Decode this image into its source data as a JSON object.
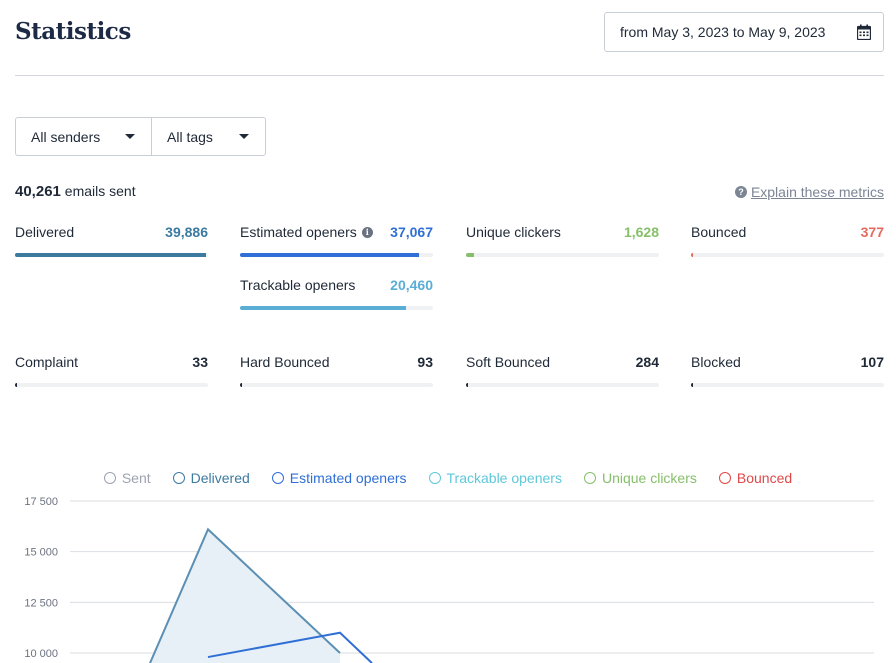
{
  "page": {
    "title": "Statistics",
    "date_range": "from May 3, 2023 to May 9, 2023"
  },
  "filters": {
    "senders": "All senders",
    "tags": "All tags"
  },
  "summary": {
    "count": "40,261",
    "label": "emails sent",
    "explain": "Explain these metrics"
  },
  "metrics": {
    "delivered": {
      "label": "Delivered",
      "value": "39,886",
      "fraction": 0.99,
      "color": "#3d7aa0"
    },
    "estimated_openers": {
      "label": "Estimated openers",
      "value": "37,067",
      "fraction": 0.93,
      "color": "#2f6fd6"
    },
    "unique_clickers": {
      "label": "Unique clickers",
      "value": "1,628",
      "fraction": 0.04,
      "color": "#86c06a"
    },
    "bounced": {
      "label": "Bounced",
      "value": "377",
      "fraction": 0.01,
      "color": "#e46a5e"
    },
    "trackable_openers": {
      "label": "Trackable openers",
      "value": "20,460",
      "fraction": 0.86,
      "color": "#5aaed6"
    },
    "complaint": {
      "label": "Complaint",
      "value": "33",
      "fraction": 0.005,
      "color": "#1f2937"
    },
    "hard_bounced": {
      "label": "Hard Bounced",
      "value": "93",
      "fraction": 0.005,
      "color": "#1f2937"
    },
    "soft_bounced": {
      "label": "Soft Bounced",
      "value": "284",
      "fraction": 0.005,
      "color": "#1f2937"
    },
    "blocked": {
      "label": "Blocked",
      "value": "107",
      "fraction": 0.005,
      "color": "#1f2937"
    }
  },
  "legend": [
    {
      "key": "sent",
      "label": "Sent",
      "color": "#9ca3af"
    },
    {
      "key": "delivered",
      "label": "Delivered",
      "color": "#3d7aa0"
    },
    {
      "key": "estimated_openers",
      "label": "Estimated openers",
      "color": "#2f6fd6"
    },
    {
      "key": "trackable_openers",
      "label": "Trackable openers",
      "color": "#5ec8d8"
    },
    {
      "key": "unique_clickers",
      "label": "Unique clickers",
      "color": "#86c06a"
    },
    {
      "key": "bounced",
      "label": "Bounced",
      "color": "#e04848"
    }
  ],
  "chart_data": {
    "type": "area",
    "y_ticks": [
      "17 500",
      "15 000",
      "12 500",
      "10 000"
    ],
    "ylim": [
      10000,
      17500
    ],
    "x": [
      0,
      1,
      2,
      3
    ],
    "series": [
      {
        "name": "Delivered",
        "values": [
          9500,
          16100,
          10000,
          null
        ],
        "color": "#5b8fb3",
        "fill": "#e7f0f6"
      },
      {
        "name": "Estimated openers",
        "values": [
          null,
          9800,
          11000,
          9500
        ],
        "color": "#2f6fd6"
      }
    ],
    "grid": true
  }
}
